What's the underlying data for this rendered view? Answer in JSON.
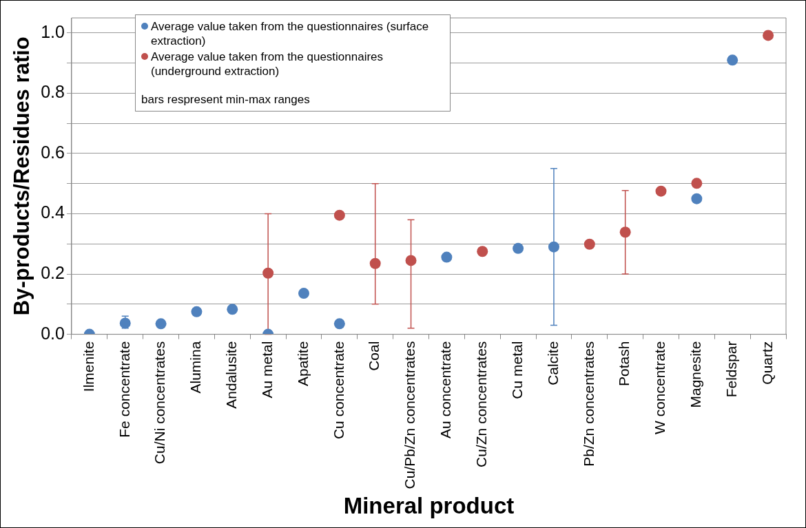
{
  "chart_data": {
    "type": "scatter",
    "xlabel": "Mineral product",
    "ylabel": "By-products/Residues ratio",
    "categories": [
      "Ilmenite",
      "Fe concentrate",
      "Cu/Ni concentrates",
      "Alumina",
      "Andalusite",
      "Au metal",
      "Apatite",
      "Cu concentrate",
      "Coal",
      "Cu/Pb/Zn concentrates",
      "Au concentrate",
      "Cu/Zn concentrates",
      "Cu metal",
      "Calcite",
      "Pb/Zn concentrates",
      "Potash",
      "W concentrate",
      "Magnesite",
      "Feldspar",
      "Quartz"
    ],
    "series": [
      {
        "name": "Average value taken from the questionnaires (surface extraction)",
        "color": "#4f81bd",
        "values": [
          0.0,
          0.037,
          0.035,
          0.075,
          0.083,
          0.0,
          0.136,
          0.035,
          null,
          null,
          0.256,
          null,
          0.285,
          0.29,
          null,
          null,
          null,
          0.45,
          0.91,
          null
        ],
        "errors": [
          null,
          [
            0.02,
            0.06
          ],
          null,
          null,
          null,
          null,
          null,
          null,
          null,
          null,
          null,
          null,
          null,
          [
            0.03,
            0.55
          ],
          null,
          null,
          null,
          null,
          null,
          null
        ]
      },
      {
        "name": "Average value taken from the questionnaires (underground extraction)",
        "color": "#c0504d",
        "values": [
          null,
          null,
          null,
          null,
          null,
          0.203,
          null,
          0.395,
          0.235,
          0.245,
          null,
          0.275,
          null,
          null,
          0.299,
          0.339,
          0.475,
          0.501,
          null,
          0.992
        ],
        "errors": [
          null,
          null,
          null,
          null,
          null,
          [
            0.0,
            0.4
          ],
          null,
          null,
          [
            0.1,
            0.5
          ],
          [
            0.02,
            0.38
          ],
          null,
          null,
          null,
          null,
          null,
          [
            0.2,
            0.477
          ],
          null,
          null,
          null,
          null
        ]
      }
    ],
    "ylim": [
      0,
      1.05
    ],
    "yticks": [
      {
        "value": 0,
        "label": "0.0"
      },
      {
        "value": 0.1,
        "label": null
      },
      {
        "value": 0.2,
        "label": "0.2"
      },
      {
        "value": 0.3,
        "label": null
      },
      {
        "value": 0.4,
        "label": "0.4"
      },
      {
        "value": 0.5,
        "label": null
      },
      {
        "value": 0.6,
        "label": "0.6"
      },
      {
        "value": 0.7,
        "label": null
      },
      {
        "value": 0.8,
        "label": "0.8"
      },
      {
        "value": 0.9,
        "label": null
      },
      {
        "value": 1.0,
        "label": "1.0"
      }
    ],
    "grid": "y",
    "legend": "top left",
    "marker": "circle",
    "annotations": [
      "bars respresent min-max ranges"
    ]
  }
}
